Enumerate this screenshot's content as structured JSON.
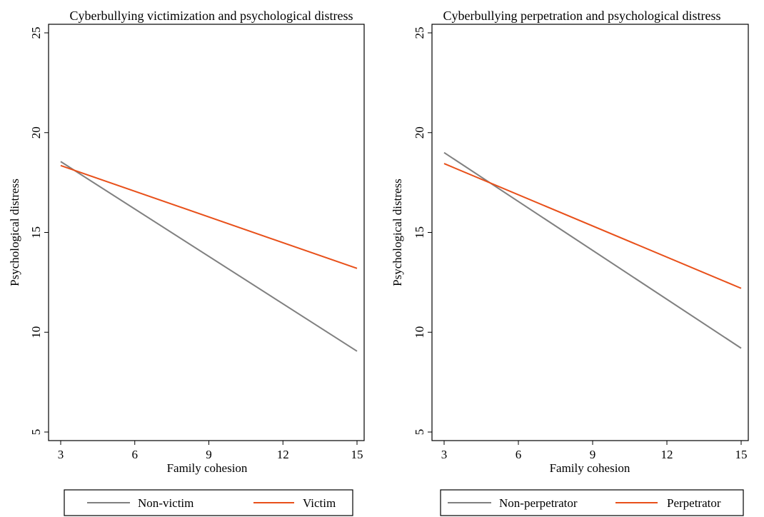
{
  "chart_data": [
    {
      "type": "line",
      "title": "Cyberbullying victimization and psychological distress",
      "xlabel": "Family cohesion",
      "ylabel": "Psychological distress",
      "xlim": [
        3,
        15
      ],
      "ylim": [
        5,
        25
      ],
      "xticks": [
        3,
        6,
        9,
        12,
        15
      ],
      "yticks": [
        5,
        10,
        15,
        20,
        25
      ],
      "grid": false,
      "legend_position": "bottom",
      "series": [
        {
          "name": "Non-victim",
          "color": "#808080",
          "x": [
            3,
            15
          ],
          "y": [
            18.55,
            9.05
          ]
        },
        {
          "name": "Victim",
          "color": "#e8501a",
          "x": [
            3,
            15
          ],
          "y": [
            18.35,
            13.2
          ]
        }
      ]
    },
    {
      "type": "line",
      "title": "Cyberbullying perpetration and psychological distress",
      "xlabel": "Family cohesion",
      "ylabel": "Psychological distress",
      "xlim": [
        3,
        15
      ],
      "ylim": [
        5,
        25
      ],
      "xticks": [
        3,
        6,
        9,
        12,
        15
      ],
      "yticks": [
        5,
        10,
        15,
        20,
        25
      ],
      "grid": false,
      "legend_position": "bottom",
      "series": [
        {
          "name": "Non-perpetrator",
          "color": "#808080",
          "x": [
            3,
            15
          ],
          "y": [
            19.0,
            9.2
          ]
        },
        {
          "name": "Perpetrator",
          "color": "#e8501a",
          "x": [
            3,
            15
          ],
          "y": [
            18.45,
            12.2
          ]
        }
      ]
    }
  ]
}
